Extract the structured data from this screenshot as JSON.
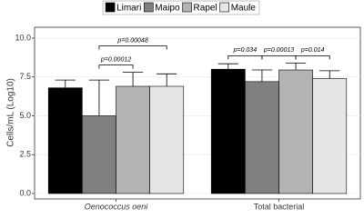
{
  "chart_data": {
    "type": "bar",
    "y_label": "Cells/mL (Log10)",
    "categories": [
      "Oenococcus oeni",
      "Total bacterial"
    ],
    "series": [
      {
        "name": "Limari",
        "color": "#000000",
        "values": [
          6.8,
          8.0
        ],
        "errors": [
          0.5,
          0.35
        ]
      },
      {
        "name": "Maipo",
        "color": "#808080",
        "values": [
          5.0,
          7.2
        ],
        "errors": [
          2.3,
          0.75
        ]
      },
      {
        "name": "Rapel",
        "color": "#b3b3b3",
        "values": [
          6.9,
          7.95
        ],
        "errors": [
          0.9,
          0.45
        ]
      },
      {
        "name": "Maule",
        "color": "#e6e6e6",
        "values": [
          6.9,
          7.4
        ],
        "errors": [
          0.8,
          0.5
        ]
      }
    ],
    "annotations": [
      {
        "category": "Oenococcus oeni",
        "between": [
          "Maipo",
          "Rapel"
        ],
        "text": "p=0.00012"
      },
      {
        "category": "Oenococcus oeni",
        "between": [
          "Maipo",
          "Maule"
        ],
        "text": "p=0.00048"
      },
      {
        "category": "Total bacterial",
        "between": [
          "Limari",
          "Maipo"
        ],
        "text": "p=0.034"
      },
      {
        "category": "Total bacterial",
        "between": [
          "Maipo",
          "Rapel"
        ],
        "text": "p=0.00013"
      },
      {
        "category": "Total bacterial",
        "between": [
          "Rapel",
          "Maule"
        ],
        "text": "p=0.014"
      }
    ],
    "ylim": [
      -0.35,
      10.7
    ],
    "yticks": [
      {
        "value": 0,
        "label": "0.0"
      },
      {
        "value": 2.5,
        "label": "2.5"
      },
      {
        "value": 5,
        "label": "5.0"
      },
      {
        "value": 7.5,
        "label": "7.5"
      },
      {
        "value": 10,
        "label": "10.0"
      }
    ],
    "grid": true,
    "legend": "top"
  }
}
